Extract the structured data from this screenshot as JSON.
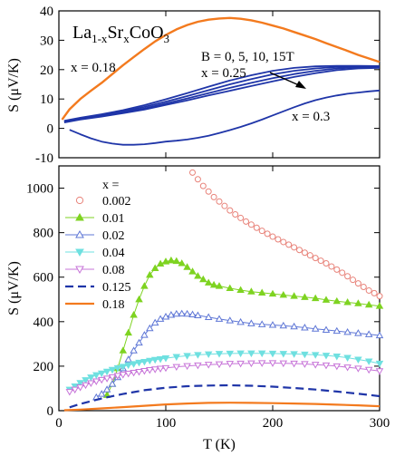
{
  "chart_data": [
    {
      "type": "line",
      "panel": "top",
      "title": "La1-xSrxCoO3",
      "title_parts": {
        "base": "La",
        "sub1": "1-x",
        "mid": "Sr",
        "sub2": "x",
        "tail": "CoO",
        "sub3": "3"
      },
      "ylabel": "S (μV/K)",
      "xlim": [
        0,
        300
      ],
      "ylim": [
        -10,
        40
      ],
      "yticks": [
        -10,
        0,
        10,
        20,
        30,
        40
      ],
      "grid": false,
      "annotations": {
        "x018": "x = 0.18",
        "field": "B = 0, 5, 10, 15T",
        "x025": "x = 0.25",
        "x03": "x = 0.3"
      },
      "series": [
        {
          "label": "x = 0.18",
          "color": "#f37a1e",
          "x": [
            3,
            10,
            20,
            30,
            40,
            50,
            60,
            70,
            80,
            90,
            100,
            110,
            120,
            130,
            140,
            150,
            160,
            170,
            180,
            190,
            200,
            210,
            220,
            230,
            240,
            250,
            260,
            270,
            280,
            290,
            300
          ],
          "y": [
            3,
            6.5,
            10,
            12.8,
            15.5,
            18.5,
            21.5,
            24.3,
            27,
            29.6,
            31.8,
            33.7,
            35.2,
            36.3,
            37,
            37.4,
            37.6,
            37.3,
            36.8,
            36,
            35,
            34,
            32.8,
            31.6,
            30.4,
            29,
            27.7,
            26.4,
            25,
            23.8,
            22.6
          ]
        },
        {
          "label": "x = 0.25, B = 0T",
          "color": "#1f35a8",
          "x": [
            5,
            20,
            40,
            60,
            80,
            100,
            120,
            140,
            160,
            180,
            200,
            220,
            240,
            260,
            280,
            300
          ],
          "y": [
            2,
            3,
            4,
            5.2,
            6.4,
            8,
            9.5,
            11.2,
            12.8,
            14.4,
            16,
            17.5,
            18.8,
            19.8,
            20.4,
            20.6
          ]
        },
        {
          "label": "x = 0.25, B = 5T",
          "color": "#1f35a8",
          "x": [
            5,
            20,
            40,
            60,
            80,
            100,
            120,
            140,
            160,
            180,
            200,
            220,
            240,
            260,
            280,
            300
          ],
          "y": [
            2.2,
            3.2,
            4.2,
            5.5,
            6.8,
            8.5,
            10.2,
            12,
            13.8,
            15.5,
            17.1,
            18.5,
            19.6,
            20.4,
            20.8,
            21
          ]
        },
        {
          "label": "x = 0.25, B = 10T",
          "color": "#1f35a8",
          "x": [
            5,
            20,
            40,
            60,
            80,
            100,
            120,
            140,
            160,
            180,
            200,
            220,
            240,
            260,
            280,
            300
          ],
          "y": [
            2.4,
            3.4,
            4.5,
            5.8,
            7.3,
            9.1,
            11,
            13,
            15,
            16.8,
            18.4,
            19.6,
            20.4,
            20.9,
            21.1,
            21.1
          ]
        },
        {
          "label": "x = 0.25, B = 15T",
          "color": "#1f35a8",
          "x": [
            5,
            20,
            40,
            60,
            80,
            100,
            120,
            140,
            160,
            180,
            200,
            220,
            240,
            260,
            280,
            300
          ],
          "y": [
            2.6,
            3.6,
            4.8,
            6.2,
            7.9,
            9.9,
            12,
            14.2,
            16.3,
            18.1,
            19.6,
            20.6,
            21.1,
            21.3,
            21.3,
            21.2
          ]
        },
        {
          "label": "x = 0.3",
          "color": "#1f35a8",
          "x": [
            10,
            20,
            30,
            40,
            50,
            60,
            70,
            80,
            90,
            100,
            110,
            120,
            130,
            140,
            150,
            160,
            170,
            180,
            190,
            200,
            210,
            220,
            230,
            240,
            250,
            260,
            270,
            280,
            290,
            300
          ],
          "y": [
            -0.5,
            -2,
            -3.4,
            -4.5,
            -5.2,
            -5.6,
            -5.6,
            -5.4,
            -5,
            -4.5,
            -4.2,
            -3.8,
            -3.2,
            -2.5,
            -1.6,
            -0.6,
            0.5,
            1.7,
            3,
            4.4,
            5.8,
            7.2,
            8.5,
            9.6,
            10.5,
            11.2,
            11.8,
            12.2,
            12.6,
            12.9
          ]
        }
      ]
    },
    {
      "type": "line",
      "panel": "bottom",
      "xlabel": "T (K)",
      "ylabel": "S (μV/K)",
      "xlim": [
        0,
        300
      ],
      "ylim": [
        0,
        1100
      ],
      "xticks": [
        0,
        100,
        200,
        300
      ],
      "yticks": [
        0,
        200,
        400,
        600,
        800,
        1000
      ],
      "grid": false,
      "legend_title": "x =",
      "legend_position": "top-left",
      "series": [
        {
          "name": "0.002",
          "color": "#e8837a",
          "marker": "circle-open",
          "line": "none",
          "x": [
            125,
            130,
            135,
            140,
            145,
            150,
            155,
            160,
            165,
            170,
            175,
            180,
            185,
            190,
            195,
            200,
            205,
            210,
            215,
            220,
            225,
            230,
            235,
            240,
            245,
            250,
            255,
            260,
            265,
            270,
            275,
            280,
            285,
            290,
            295,
            300
          ],
          "y": [
            1070,
            1040,
            1010,
            985,
            960,
            940,
            920,
            900,
            882,
            866,
            850,
            836,
            822,
            808,
            795,
            782,
            770,
            758,
            746,
            734,
            722,
            710,
            698,
            686,
            674,
            662,
            648,
            634,
            620,
            604,
            588,
            572,
            556,
            540,
            528,
            515
          ]
        },
        {
          "name": "0.01",
          "color": "#7ed321",
          "marker": "triangle-up-filled",
          "line": "solid",
          "x": [
            45,
            50,
            55,
            60,
            65,
            70,
            75,
            80,
            85,
            90,
            95,
            100,
            105,
            110,
            115,
            120,
            125,
            130,
            135,
            140,
            145,
            150,
            160,
            170,
            180,
            190,
            200,
            210,
            220,
            230,
            240,
            250,
            260,
            270,
            280,
            290,
            300
          ],
          "y": [
            70,
            120,
            190,
            270,
            350,
            430,
            500,
            560,
            610,
            640,
            660,
            670,
            675,
            672,
            662,
            645,
            625,
            605,
            590,
            575,
            565,
            560,
            550,
            542,
            535,
            530,
            525,
            520,
            515,
            510,
            505,
            498,
            492,
            487,
            482,
            476,
            470
          ]
        },
        {
          "name": "0.02",
          "color": "#5f77d6",
          "marker": "triangle-up-open",
          "line": "solid",
          "x": [
            35,
            40,
            45,
            50,
            55,
            60,
            65,
            70,
            75,
            80,
            85,
            90,
            95,
            100,
            105,
            110,
            115,
            120,
            125,
            130,
            140,
            150,
            160,
            170,
            180,
            190,
            200,
            210,
            220,
            230,
            240,
            250,
            260,
            270,
            280,
            290,
            300
          ],
          "y": [
            60,
            75,
            95,
            120,
            150,
            190,
            230,
            270,
            305,
            340,
            370,
            395,
            412,
            422,
            430,
            435,
            436,
            435,
            432,
            428,
            420,
            412,
            405,
            398,
            392,
            388,
            385,
            382,
            378,
            373,
            368,
            363,
            358,
            353,
            348,
            343,
            338
          ]
        },
        {
          "name": "0.04",
          "color": "#6fe0e0",
          "marker": "triangle-down-filled",
          "line": "solid",
          "x": [
            10,
            15,
            20,
            25,
            30,
            35,
            40,
            45,
            50,
            55,
            60,
            65,
            70,
            75,
            80,
            85,
            90,
            95,
            100,
            110,
            120,
            130,
            140,
            150,
            160,
            170,
            180,
            190,
            200,
            210,
            220,
            230,
            240,
            250,
            260,
            270,
            280,
            290,
            300
          ],
          "y": [
            95,
            110,
            125,
            138,
            150,
            160,
            168,
            176,
            184,
            192,
            198,
            205,
            210,
            216,
            220,
            225,
            229,
            232,
            236,
            242,
            247,
            251,
            254,
            256,
            257,
            258,
            258,
            258,
            257,
            256,
            255,
            253,
            251,
            248,
            244,
            238,
            230,
            222,
            212
          ]
        },
        {
          "name": "0.08",
          "color": "#c774d8",
          "marker": "triangle-down-open",
          "line": "solid",
          "x": [
            10,
            15,
            20,
            25,
            30,
            35,
            40,
            45,
            50,
            55,
            60,
            65,
            70,
            75,
            80,
            85,
            90,
            95,
            100,
            110,
            120,
            130,
            140,
            150,
            160,
            170,
            180,
            190,
            200,
            210,
            220,
            230,
            240,
            250,
            260,
            270,
            280,
            290,
            300
          ],
          "y": [
            85,
            95,
            105,
            115,
            124,
            132,
            139,
            145,
            151,
            157,
            162,
            167,
            171,
            175,
            179,
            183,
            186,
            189,
            192,
            197,
            201,
            204,
            207,
            209,
            211,
            212,
            213,
            214,
            214,
            213,
            212,
            210,
            207,
            204,
            200,
            195,
            190,
            184,
            178
          ]
        },
        {
          "name": "0.125",
          "color": "#1f35a8",
          "marker": "none",
          "line": "dashed",
          "x": [
            10,
            20,
            40,
            60,
            80,
            100,
            120,
            140,
            160,
            180,
            200,
            220,
            240,
            260,
            280,
            300
          ],
          "y": [
            15,
            30,
            55,
            75,
            92,
            103,
            110,
            113,
            114,
            112,
            108,
            102,
            95,
            86,
            76,
            65
          ]
        },
        {
          "name": "0.18",
          "color": "#f37a1e",
          "marker": "none",
          "line": "solid",
          "x": [
            5,
            20,
            40,
            60,
            80,
            100,
            120,
            140,
            160,
            180,
            200,
            220,
            240,
            260,
            280,
            300
          ],
          "y": [
            2,
            5,
            10,
            16,
            22,
            28,
            32,
            35,
            36,
            35,
            34,
            32,
            30,
            27,
            24,
            20
          ]
        }
      ]
    }
  ]
}
